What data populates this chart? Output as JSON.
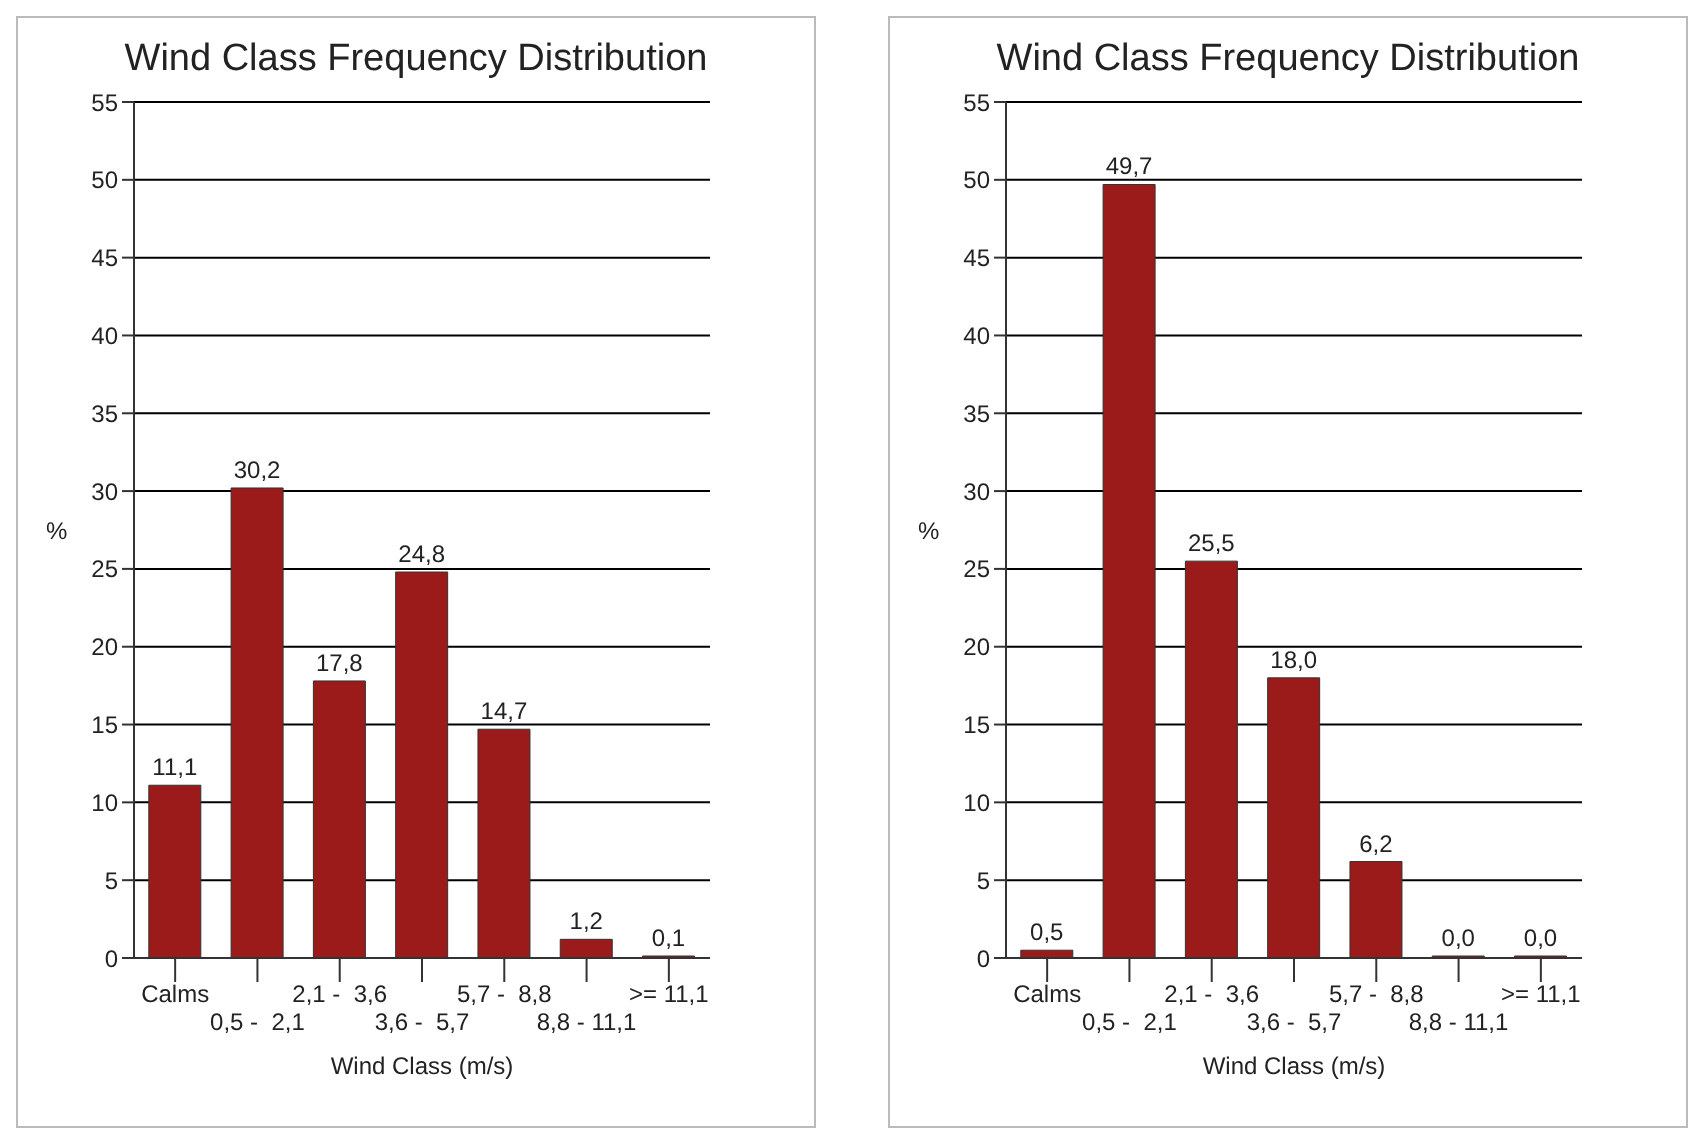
{
  "chart_data": [
    {
      "type": "bar",
      "title": "Wind Class Frequency Distribution",
      "xlabel": "Wind Class (m/s)",
      "ylabel": "%",
      "categories": [
        "Calms",
        "0,5 -  2,1",
        "2,1 -  3,6",
        "3,6 -  5,7",
        "5,7 -  8,8",
        "8,8 - 11,1",
        ">= 11,1"
      ],
      "values": [
        11.1,
        30.2,
        17.8,
        24.8,
        14.7,
        1.2,
        0.1
      ],
      "value_labels": [
        "11,1",
        "30,2",
        "17,8",
        "24,8",
        "14,7",
        "1,2",
        "0,1"
      ],
      "color": "#9b1b1b",
      "ylim": [
        0,
        55
      ],
      "yticks": [
        0,
        5,
        10,
        15,
        20,
        25,
        30,
        35,
        40,
        45,
        50,
        55
      ],
      "grid": "y",
      "legend": false
    },
    {
      "type": "bar",
      "title": "Wind Class Frequency Distribution",
      "xlabel": "Wind Class (m/s)",
      "ylabel": "%",
      "categories": [
        "Calms",
        "0,5 -  2,1",
        "2,1 -  3,6",
        "3,6 -  5,7",
        "5,7 -  8,8",
        "8,8 - 11,1",
        ">= 11,1"
      ],
      "values": [
        0.5,
        49.7,
        25.5,
        18.0,
        6.2,
        0.0,
        0.0
      ],
      "value_labels": [
        "0,5",
        "49,7",
        "25,5",
        "18,0",
        "6,2",
        "0,0",
        "0,0"
      ],
      "color": "#9b1b1b",
      "ylim": [
        0,
        55
      ],
      "yticks": [
        0,
        5,
        10,
        15,
        20,
        25,
        30,
        35,
        40,
        45,
        50,
        55
      ],
      "grid": "y",
      "legend": false
    }
  ]
}
